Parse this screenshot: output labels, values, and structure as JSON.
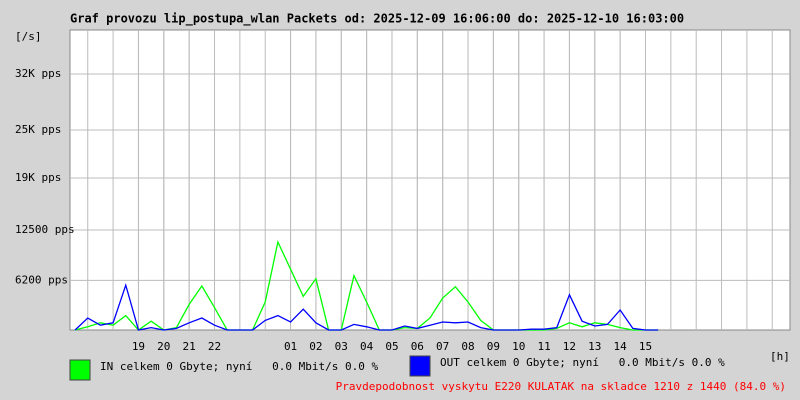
{
  "chart_data": {
    "type": "line",
    "title": "Graf provozu lip_postupa_wlan Packets od: 2025-12-09 16:06:00 do: 2025-12-10 16:03:00",
    "y_label": "[/s]",
    "x_label": "[h]",
    "xlim": [
      16.3,
      44.7
    ],
    "ylim": [
      0,
      37500
    ],
    "grid": true,
    "yticks": [
      {
        "value": 6200,
        "label": "6200 pps"
      },
      {
        "value": 12500,
        "label": "12500 pps"
      },
      {
        "value": 19000,
        "label": "19K pps"
      },
      {
        "value": 25000,
        "label": "25K pps"
      },
      {
        "value": 32000,
        "label": "32K pps"
      }
    ],
    "xticks": [
      19,
      20,
      21,
      22,
      {
        "value": 25,
        "label": "01"
      },
      {
        "value": 26,
        "label": "02"
      },
      {
        "value": 27,
        "label": "03"
      },
      {
        "value": 28,
        "label": "04"
      },
      {
        "value": 29,
        "label": "05"
      },
      {
        "value": 30,
        "label": "06"
      },
      {
        "value": 31,
        "label": "07"
      },
      {
        "value": 32,
        "label": "08"
      },
      {
        "value": 33,
        "label": "09"
      },
      {
        "value": 34,
        "label": "10"
      },
      {
        "value": 35,
        "label": "11"
      },
      {
        "value": 36,
        "label": "12"
      },
      {
        "value": 37,
        "label": "13"
      },
      {
        "value": 38,
        "label": "14"
      },
      {
        "value": 39,
        "label": "15"
      }
    ],
    "x": [
      16.5,
      17,
      17.5,
      18,
      18.5,
      19,
      19.5,
      20,
      20.5,
      21,
      21.5,
      22,
      22.5,
      23,
      23.5,
      24,
      24.5,
      25,
      25.5,
      26,
      26.5,
      27,
      27.5,
      28,
      28.5,
      29,
      29.5,
      30,
      30.5,
      31,
      31.5,
      32,
      32.5,
      33,
      33.5,
      34,
      34.5,
      35,
      35.5,
      36,
      36.5,
      37,
      37.5,
      38,
      38.5,
      39,
      39.5
    ],
    "series": [
      {
        "name": "IN celkem 0 Gbyte; nyní   0.0 Mbit/s 0.0 %",
        "color": "#00ff00",
        "values": [
          0,
          400,
          900,
          600,
          1800,
          0,
          1100,
          0,
          300,
          3200,
          5500,
          2800,
          0,
          0,
          0,
          3500,
          11000,
          7600,
          4200,
          6400,
          0,
          0,
          6800,
          3500,
          0,
          0,
          300,
          200,
          1500,
          4000,
          5400,
          3500,
          1200,
          0,
          0,
          0,
          0,
          0,
          200,
          900,
          400,
          900,
          700,
          300,
          0,
          0,
          0
        ]
      },
      {
        "name": "OUT celkem 0 Gbyte; nyní   0.0 Mbit/s 0.0 %",
        "color": "#0000ff",
        "values": [
          0,
          1500,
          600,
          900,
          5600,
          0,
          300,
          0,
          200,
          900,
          1500,
          600,
          0,
          0,
          0,
          1200,
          1800,
          1000,
          2600,
          900,
          0,
          0,
          700,
          400,
          0,
          0,
          500,
          200,
          600,
          1000,
          900,
          1000,
          300,
          0,
          0,
          0,
          100,
          100,
          300,
          4400,
          1100,
          500,
          700,
          2500,
          200,
          0,
          0
        ]
      }
    ],
    "note": "Pravdepodobnost vyskytu E220 KULATAK na skladce 1210 z 1440 (84.0 %)"
  }
}
